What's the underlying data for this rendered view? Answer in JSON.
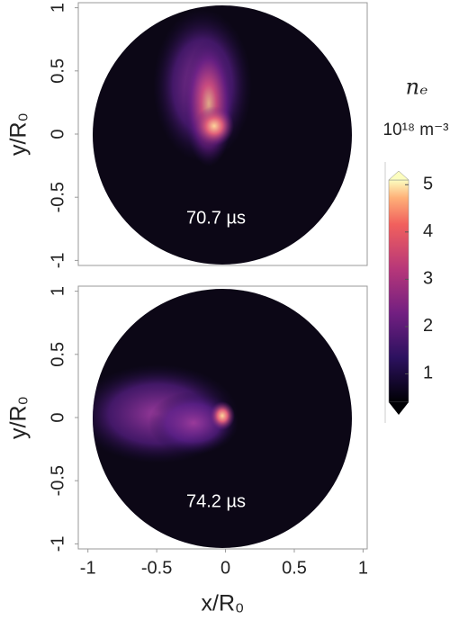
{
  "chart_data": [
    {
      "type": "heatmap",
      "ylabel": "y/R₀",
      "annotation": "70.7 µs",
      "xlim": [
        -1.07,
        1.03
      ],
      "ylim": [
        -1.04,
        1.04
      ],
      "yticks": [
        -1,
        -0.5,
        0,
        0.5,
        1
      ]
    },
    {
      "type": "heatmap",
      "xlabel": "x/R₀",
      "ylabel": "y/R₀",
      "annotation": "74.2 µs",
      "xlim": [
        -1.07,
        1.03
      ],
      "ylim": [
        -1.04,
        1.04
      ],
      "xticks": [
        -1,
        -0.5,
        0,
        0.5,
        1
      ],
      "yticks": [
        -1,
        -0.5,
        0,
        0.5,
        1
      ]
    },
    {
      "type": "colorbar",
      "title": "nₑ",
      "subtitle": "10¹⁸ m⁻³",
      "ylim": [
        0.4,
        5.1
      ],
      "yticks": [
        1,
        2,
        3,
        4,
        5
      ]
    }
  ]
}
